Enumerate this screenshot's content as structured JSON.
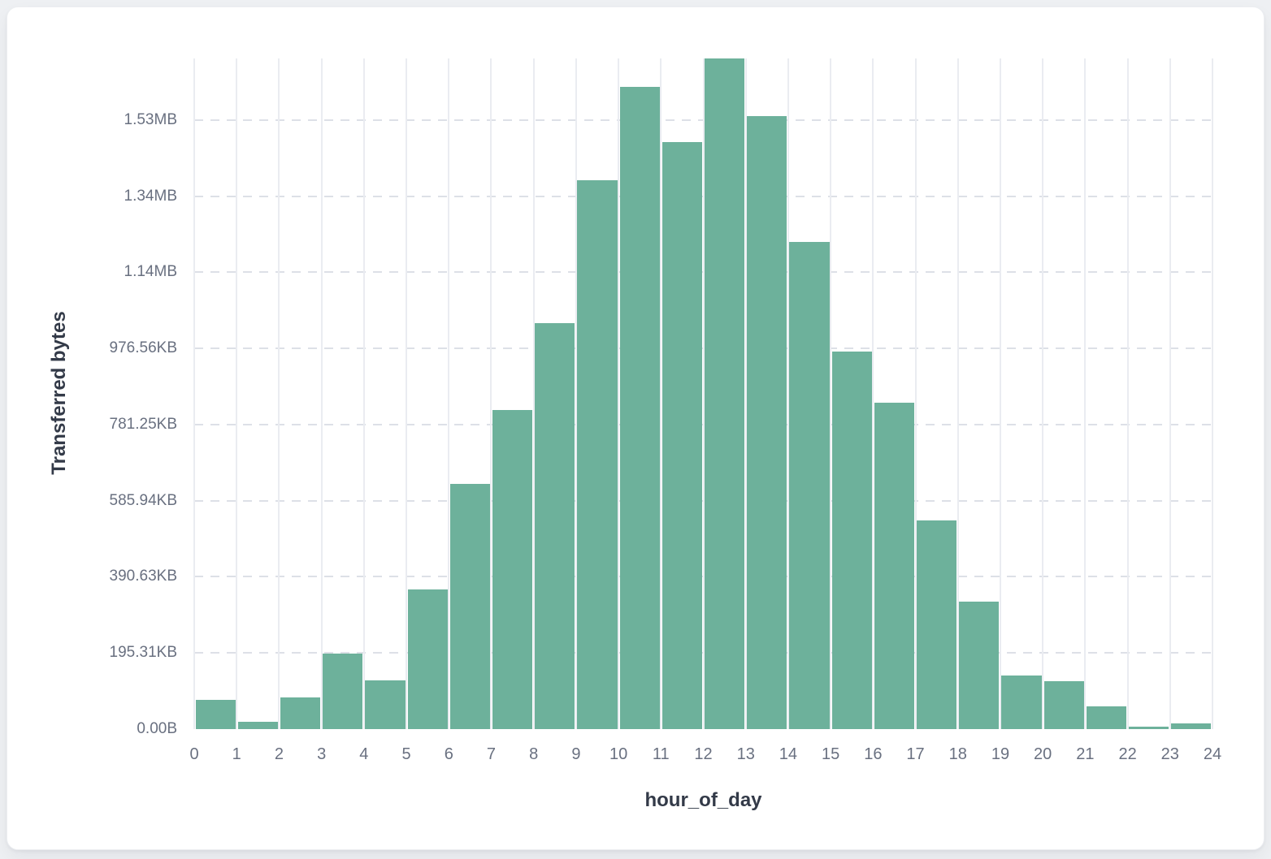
{
  "page": {
    "background": "#eef0f3"
  },
  "card": {
    "background": "#ffffff",
    "border_color": "#eceef1"
  },
  "chart_data": {
    "type": "bar",
    "variant": "histogram",
    "title": "",
    "xlabel": "hour_of_day",
    "ylabel": "Transferred bytes",
    "unit": "bytes",
    "categories": [
      0,
      1,
      2,
      3,
      4,
      5,
      6,
      7,
      8,
      9,
      10,
      11,
      12,
      13,
      14,
      15,
      16,
      17,
      18,
      19,
      20,
      21,
      22,
      23
    ],
    "values": [
      76000,
      19000,
      83000,
      199000,
      128000,
      368000,
      644000,
      838000,
      1067000,
      1443000,
      1688000,
      1542000,
      1762000,
      1610000,
      1279000,
      992000,
      858000,
      548000,
      336000,
      141000,
      125000,
      59000,
      6500,
      15500
    ],
    "ylim": [
      0,
      1762000
    ],
    "y_ticks": {
      "values": [
        0,
        200000,
        400000,
        600000,
        800000,
        1000000,
        1200000,
        1400000,
        1600000
      ],
      "labels": [
        "0.00B",
        "195.31KB",
        "390.63KB",
        "585.94KB",
        "781.25KB",
        "976.56KB",
        "1.14MB",
        "1.34MB",
        "1.53MB"
      ]
    },
    "x_ticks": {
      "labels": [
        "0",
        "1",
        "2",
        "3",
        "4",
        "5",
        "6",
        "7",
        "8",
        "9",
        "10",
        "11",
        "12",
        "13",
        "14",
        "15",
        "16",
        "17",
        "18",
        "19",
        "20",
        "21",
        "22",
        "23",
        "24"
      ]
    },
    "grid": {
      "vertical_lines": true,
      "horizontal_dashed_lines": true,
      "legend": "none"
    },
    "colors": {
      "bar": "#6db19b",
      "vertical_grid": "#eaecf1",
      "horizontal_grid": "#dde0e7",
      "tick_label": "#697080",
      "axis_title": "#333a48"
    }
  }
}
